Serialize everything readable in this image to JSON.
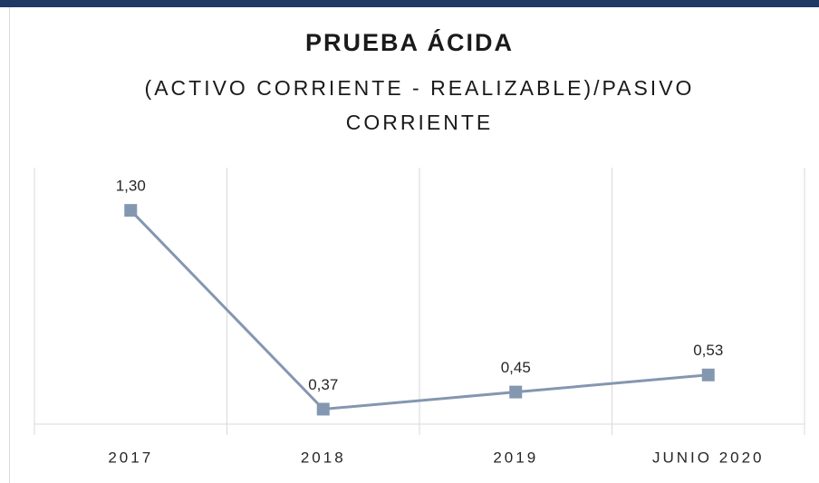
{
  "chart_data": {
    "type": "line",
    "title": "PRUEBA ÁCIDA",
    "subtitle": "(ACTIVO CORRIENTE - REALIZABLE)/PASIVO CORRIENTE",
    "categories": [
      "2017",
      "2018",
      "2019",
      "JUNIO 2020"
    ],
    "series": [
      {
        "color": "#8497b0",
        "values": [
          1.3,
          0.37,
          0.45,
          0.53
        ],
        "value_labels": [
          "1,30",
          "0,37",
          "0,45",
          "0,53"
        ]
      }
    ],
    "ylim": [
      0.3,
      1.5
    ],
    "grid": true
  }
}
